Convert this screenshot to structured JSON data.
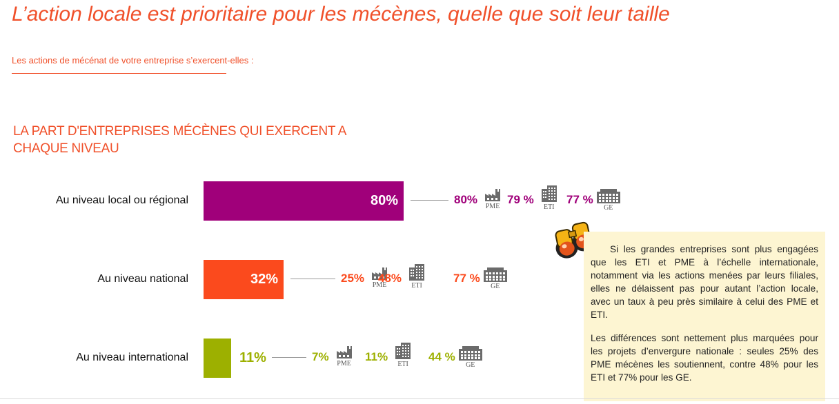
{
  "page": {
    "title": "L’action locale est prioritaire pour les mécènes, quelle que soit leur taille",
    "question": "Les actions de mécénat de votre entreprise s’exercent-elles :",
    "section_title": "LA PART D'ENTREPRISES MÉCÈNES QUI EXERCENT A CHAQUE NIVEAU"
  },
  "chart_data": {
    "type": "bar",
    "orientation": "horizontal",
    "title": "LA PART D'ENTREPRISES MÉCÈNES QUI EXERCENT A CHAQUE NIVEAU",
    "categories": [
      "Au niveau local ou régional",
      "Au niveau national",
      "Au niveau international"
    ],
    "values": [
      80,
      32,
      11
    ],
    "value_labels": [
      "80%",
      "32%",
      "11%"
    ],
    "colors": [
      "#a0007a",
      "#fb4a1d",
      "#9db000"
    ],
    "xlim": [
      0,
      100
    ],
    "breakdown": {
      "groups": [
        "PME",
        "ETI",
        "GE"
      ],
      "series": [
        {
          "name": "Au niveau local ou régional",
          "values": [
            80,
            79,
            77
          ],
          "labels": [
            "80%",
            "79 %",
            "77 %"
          ]
        },
        {
          "name": "Au niveau national",
          "values": [
            25,
            48,
            77
          ],
          "labels": [
            "25%",
            "48%",
            "77 %"
          ]
        },
        {
          "name": "Au niveau international",
          "values": [
            7,
            11,
            44
          ],
          "labels": [
            "7%",
            "11%",
            "44 %"
          ]
        }
      ]
    }
  },
  "icons": {
    "pme": "factory-icon",
    "eti": "office-building-icon",
    "ge": "large-building-icon",
    "callout": "binoculars-icon"
  },
  "note": {
    "p1": "Si les grandes entreprises sont plus engagées que les ETI et PME à l’échelle internationale, notamment via les actions menées par leurs filiales, elles ne délaissent pas pour autant l’action locale, avec un taux à peu près similaire à celui des PME et ETI.",
    "p2": "Les différences sont nettement plus marquées pour les projets d’envergure nationale : seules 25% des PME mécènes les soutiennent, contre 48% pour les ETI et 77% pour les GE."
  }
}
